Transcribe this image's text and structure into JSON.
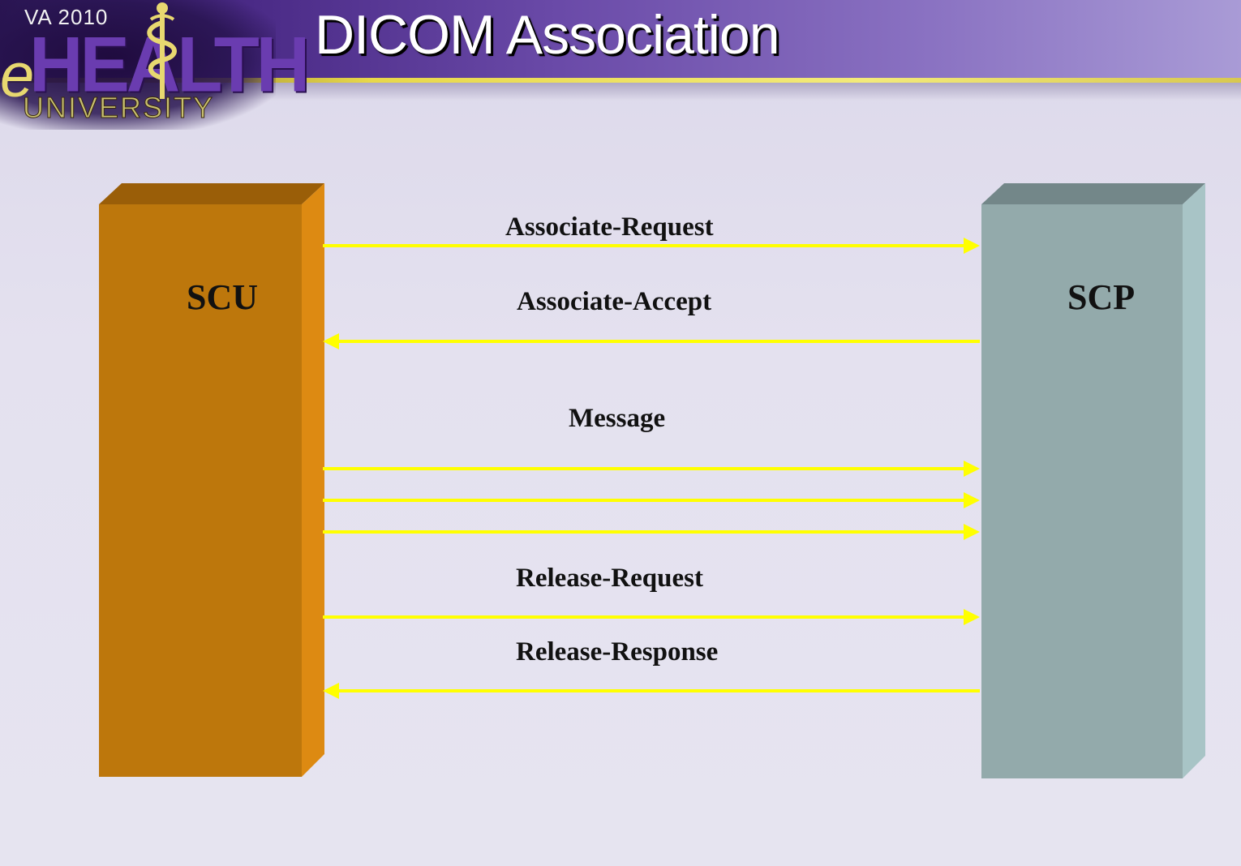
{
  "slide": {
    "title": "DICOM Association"
  },
  "logo": {
    "va_text": "VA 2010",
    "e_text": "e",
    "health_text": "HEALTH",
    "university_text": "UNIVERSITY"
  },
  "nodes": {
    "scu": {
      "label": "SCU"
    },
    "scp": {
      "label": "SCP"
    }
  },
  "messages": [
    {
      "label": "Associate-Request",
      "direction": "to-scp"
    },
    {
      "label": "Associate-Accept",
      "direction": "to-scu"
    },
    {
      "label": "Message",
      "direction": "to-scp"
    },
    {
      "label": "",
      "direction": "to-scp"
    },
    {
      "label": "",
      "direction": "to-scp"
    },
    {
      "label": "Release-Request",
      "direction": "to-scp"
    },
    {
      "label": "Release-Response",
      "direction": "to-scu"
    }
  ],
  "colors": {
    "scu_front": "#bd770c",
    "scu_side": "#dd8a12",
    "scu_top": "#9a5e08",
    "scp_front": "#93aaab",
    "scp_side": "#a8c4c6",
    "scp_top": "#738789",
    "arrow": "#ffff00"
  }
}
